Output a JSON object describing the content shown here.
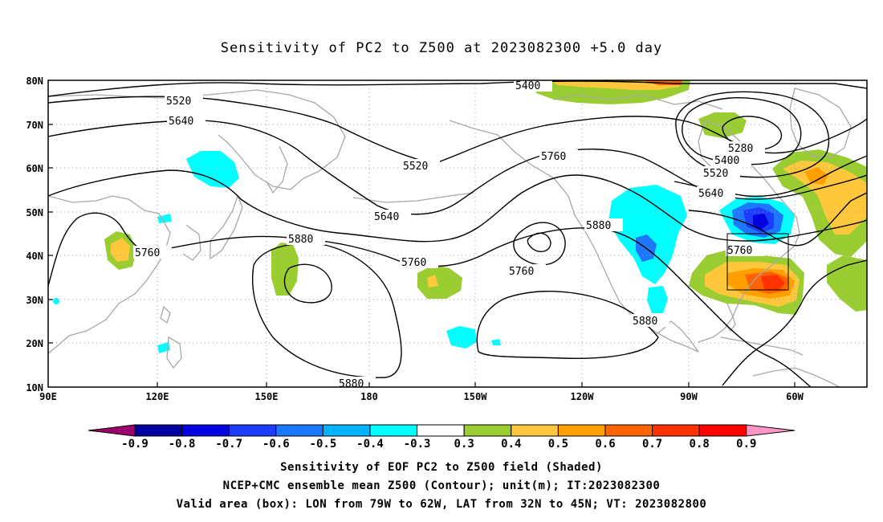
{
  "title": "Sensitivity of PC2 to Z500 at 2023082300 +5.0 day",
  "axes": {
    "lat_ticks": [
      "80N",
      "70N",
      "60N",
      "50N",
      "40N",
      "30N",
      "20N",
      "10N"
    ],
    "lon_ticks": [
      "90E",
      "120E",
      "150E",
      "180",
      "150W",
      "120W",
      "90W",
      "60W"
    ]
  },
  "contour_labels": [
    "5400",
    "5520",
    "5640",
    "5520",
    "5760",
    "5280",
    "5400",
    "5520",
    "5640",
    "5640",
    "5760",
    "5880",
    "5760",
    "5760",
    "5880",
    "5760",
    "5880",
    "5880"
  ],
  "colorbar": {
    "labels": [
      "-0.9",
      "-0.8",
      "-0.7",
      "-0.6",
      "-0.5",
      "-0.4",
      "-0.3",
      "0.3",
      "0.4",
      "0.5",
      "0.6",
      "0.7",
      "0.8",
      "0.9"
    ],
    "colors": [
      "#a0006e",
      "#0000a0",
      "#0000e0",
      "#1e3cff",
      "#1e78ff",
      "#00b4ff",
      "#00ffff",
      "#ffffff",
      "#9acd32",
      "#ffc83c",
      "#ffa000",
      "#ff6400",
      "#ff3200",
      "#ff0000",
      "#ff96c8"
    ]
  },
  "valid_box": {
    "lon": [
      -79,
      -62
    ],
    "lat": [
      32,
      45
    ]
  },
  "captions": {
    "line1": "Sensitivity of EOF PC2 to Z500 field (Shaded)",
    "line2": "NCEP+CMC ensemble mean Z500 (Contour); unit(m); IT:2023082300",
    "line3": "Valid area (box): LON from 79W to 62W, LAT from 32N to 45N; VT: 2023082800"
  }
}
